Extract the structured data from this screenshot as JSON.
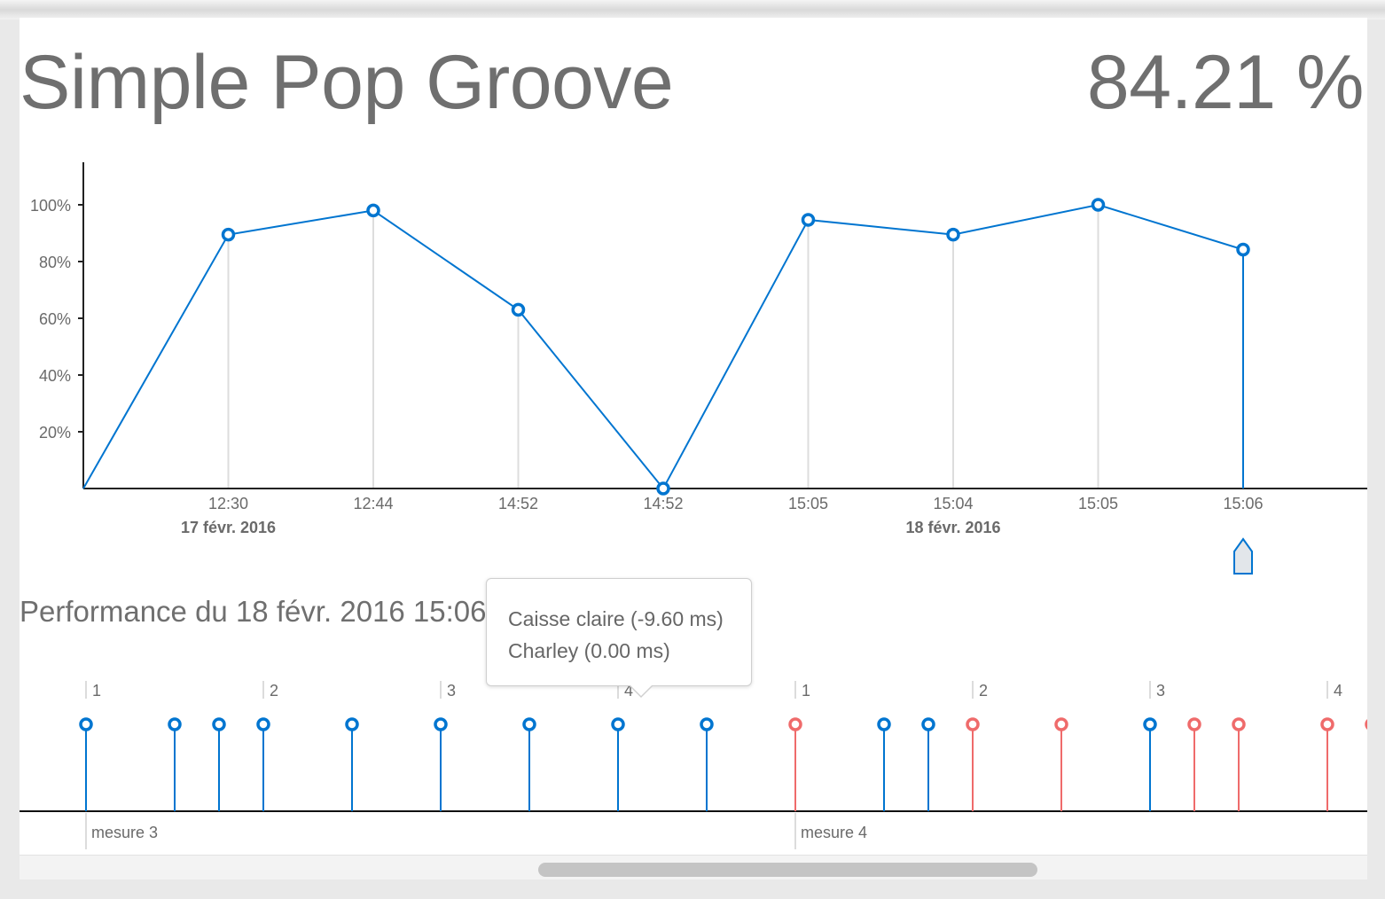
{
  "header": {
    "title": "Simple Pop Groove",
    "score": "84.21 %"
  },
  "chart_data": {
    "type": "line",
    "title": "",
    "xlabel": "",
    "ylabel": "",
    "y_ticks": [
      "20%",
      "40%",
      "60%",
      "80%",
      "100%"
    ],
    "ylim": [
      0,
      100
    ],
    "x_tick_times": [
      "12:30",
      "12:44",
      "14:52",
      "14:52",
      "15:05",
      "15:04",
      "15:05",
      "15:06"
    ],
    "x_tick_dates": [
      "17 févr. 2016",
      "",
      "",
      "",
      "",
      "18 févr. 2016",
      "",
      ""
    ],
    "series": [
      {
        "values": [
          0,
          89.5,
          98,
          63,
          0,
          94.7,
          89.5,
          100,
          84.21
        ],
        "first_point_unlabeled": true
      }
    ],
    "selected_index": 8,
    "grid": "vertical lines at data points",
    "color": "#0075d0"
  },
  "performance": {
    "title": "Performance du 18 févr. 2016 15:06",
    "beat_labels": [
      "1",
      "2",
      "3",
      "4",
      "1",
      "2",
      "3",
      "4"
    ],
    "measure_labels": [
      "mesure 3",
      "mesure 4"
    ],
    "hits": [
      {
        "beat": 0,
        "status": "ok"
      },
      {
        "beat": 0.5,
        "status": "ok"
      },
      {
        "beat": 0.75,
        "status": "ok"
      },
      {
        "beat": 1,
        "status": "ok"
      },
      {
        "beat": 1.5,
        "status": "ok"
      },
      {
        "beat": 2,
        "status": "ok"
      },
      {
        "beat": 2.5,
        "status": "ok"
      },
      {
        "beat": 3,
        "status": "ok"
      },
      {
        "beat": 3.5,
        "status": "ok"
      },
      {
        "beat": 4,
        "status": "miss"
      },
      {
        "beat": 4.5,
        "status": "ok"
      },
      {
        "beat": 4.75,
        "status": "ok"
      },
      {
        "beat": 5,
        "status": "miss"
      },
      {
        "beat": 5.5,
        "status": "miss"
      },
      {
        "beat": 6,
        "status": "ok"
      },
      {
        "beat": 6.25,
        "status": "miss"
      },
      {
        "beat": 6.5,
        "status": "miss"
      },
      {
        "beat": 7,
        "status": "miss"
      },
      {
        "beat": 7.25,
        "status": "miss"
      }
    ],
    "colors": {
      "ok": "#0075d0",
      "miss": "#ef6b6b"
    }
  },
  "tooltip": {
    "line1": "Caisse claire (-9.60 ms)",
    "line2": "Charley (0.00 ms)"
  },
  "icons": {
    "selection_marker": "marker-pin-icon"
  }
}
